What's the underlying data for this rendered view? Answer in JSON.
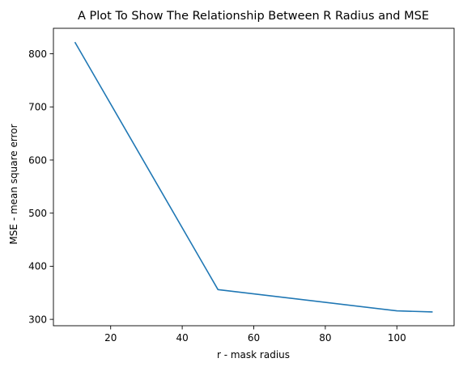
{
  "chart_data": {
    "type": "line",
    "title": "A Plot To Show The Relationship Between R Radius and MSE",
    "xlabel": "r - mask radius",
    "ylabel": "MSE - mean square error",
    "xlim": [
      4,
      116
    ],
    "ylim": [
      288,
      848
    ],
    "x_ticks": [
      20,
      40,
      60,
      80,
      100
    ],
    "y_ticks": [
      300,
      400,
      500,
      600,
      700,
      800
    ],
    "grid": false,
    "legend": "none",
    "series": [
      {
        "color": "#1f77b4",
        "x": [
          10,
          50,
          100,
          110
        ],
        "y": [
          822,
          356,
          316,
          314
        ]
      }
    ]
  }
}
